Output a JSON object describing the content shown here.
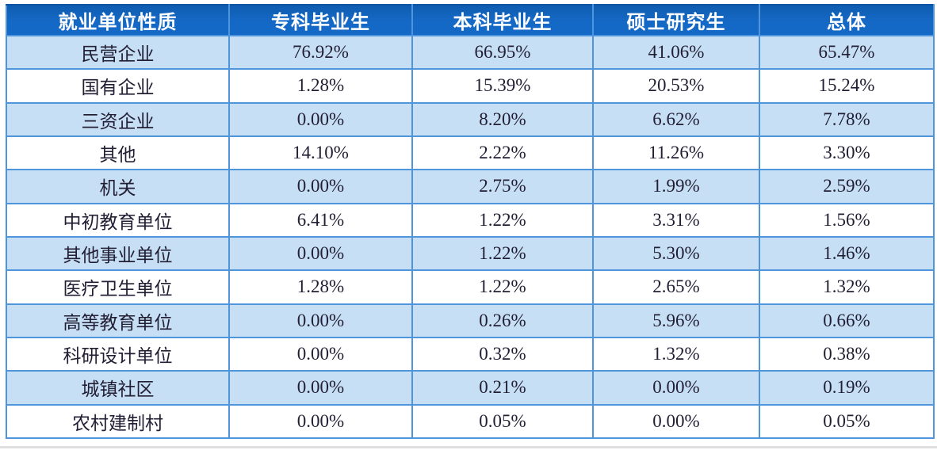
{
  "chart_data": {
    "type": "table",
    "columns": [
      "就业单位性质",
      "专科毕业生",
      "本科毕业生",
      "硕士研究生",
      "总体"
    ],
    "rows": [
      {
        "label": "民营企业",
        "values": [
          "76.92%",
          "66.95%",
          "41.06%",
          "65.47%"
        ]
      },
      {
        "label": "国有企业",
        "values": [
          "1.28%",
          "15.39%",
          "20.53%",
          "15.24%"
        ]
      },
      {
        "label": "三资企业",
        "values": [
          "0.00%",
          "8.20%",
          "6.62%",
          "7.78%"
        ]
      },
      {
        "label": "其他",
        "values": [
          "14.10%",
          "2.22%",
          "11.26%",
          "3.30%"
        ]
      },
      {
        "label": "机关",
        "values": [
          "0.00%",
          "2.75%",
          "1.99%",
          "2.59%"
        ]
      },
      {
        "label": "中初教育单位",
        "values": [
          "6.41%",
          "1.22%",
          "3.31%",
          "1.56%"
        ]
      },
      {
        "label": "其他事业单位",
        "values": [
          "0.00%",
          "1.22%",
          "5.30%",
          "1.46%"
        ]
      },
      {
        "label": "医疗卫生单位",
        "values": [
          "1.28%",
          "1.22%",
          "2.65%",
          "1.32%"
        ]
      },
      {
        "label": "高等教育单位",
        "values": [
          "0.00%",
          "0.26%",
          "5.96%",
          "0.66%"
        ]
      },
      {
        "label": "科研设计单位",
        "values": [
          "0.00%",
          "0.32%",
          "1.32%",
          "0.38%"
        ]
      },
      {
        "label": "城镇社区",
        "values": [
          "0.00%",
          "0.21%",
          "0.00%",
          "0.19%"
        ]
      },
      {
        "label": "农村建制村",
        "values": [
          "0.00%",
          "0.05%",
          "0.00%",
          "0.05%"
        ]
      }
    ],
    "title": "",
    "legend": null,
    "layout_hints": {
      "striped_rows": "odd rows light blue, even rows white",
      "header_position": "top",
      "cell_alignment": "center"
    }
  },
  "colors": {
    "header_bg": "#1569C6",
    "header_text": "#FFFFFF",
    "row_alt_bg": "#C6DFF5",
    "row_bg": "#FFFFFF",
    "border_color": "#4E95DB",
    "body_text": "#221E33"
  }
}
